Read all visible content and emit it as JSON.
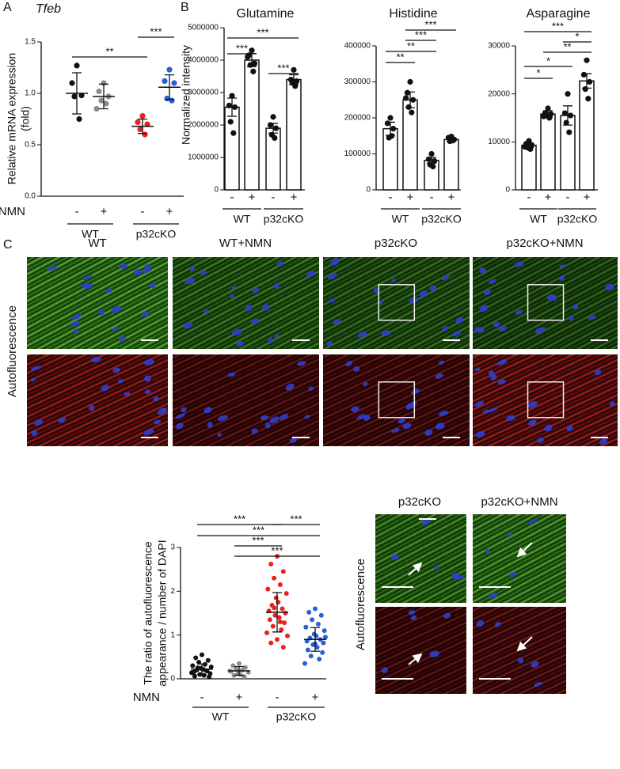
{
  "chart_data": [
    {
      "type": "dot",
      "panel_label": "A",
      "title": "Tfeb",
      "ylabel": [
        "Relative mRNA expression",
        "(fold)"
      ],
      "xlabel": "NMN",
      "categories": [
        "-",
        "+",
        "-",
        "+"
      ],
      "groups": [
        "WT",
        "p32cKO"
      ],
      "colors": [
        "#111111",
        "#8c8c8c",
        "#e8231f",
        "#2a5fd6"
      ],
      "points": [
        [
          1.27,
          1.1,
          0.98,
          0.97,
          0.75
        ],
        [
          1.1,
          1.02,
          0.97,
          0.93,
          0.9,
          0.85
        ],
        [
          0.78,
          0.72,
          0.7,
          0.65,
          0.6
        ],
        [
          1.23,
          1.12,
          1.1,
          0.95,
          0.93
        ]
      ],
      "means": [
        1.0,
        0.97,
        0.68,
        1.06
      ],
      "errors": [
        0.2,
        0.12,
        0.07,
        0.12
      ],
      "ylim": [
        0,
        1.5
      ],
      "yticks": [
        {
          "value": 0,
          "label": "0.0"
        },
        0.5,
        {
          "value": 1,
          "label": "1.0"
        },
        1.5
      ],
      "annotations": [
        "**",
        "***"
      ]
    },
    {
      "type": "bar",
      "panel_label": "B",
      "title": "Glutamine",
      "ylabel": [
        "Normalized intensity"
      ],
      "categories": [
        "-",
        "+",
        "-",
        "+"
      ],
      "groups": [
        "WT",
        "p32cKO"
      ],
      "color": "#111111",
      "points": [
        [
          2900000,
          2600000,
          2550000,
          2100000,
          1750000
        ],
        [
          4300000,
          4150000,
          3900000,
          3850000,
          3650000,
          4100000
        ],
        [
          2250000,
          2000000,
          1900000,
          1700000,
          1600000
        ],
        [
          3700000,
          3400000,
          3350000,
          3300000,
          3200000
        ]
      ],
      "means": [
        2550000,
        4000000,
        1900000,
        3400000
      ],
      "errors": [
        280000,
        200000,
        150000,
        150000
      ],
      "ylim": [
        0,
        5000000
      ],
      "yticks": [
        0,
        1000000,
        2000000,
        3000000,
        4000000,
        5000000
      ],
      "annotations": [
        "***",
        "***",
        "***"
      ]
    },
    {
      "type": "bar",
      "title": "Histidine",
      "categories": [
        "-",
        "+",
        "-",
        "+"
      ],
      "groups": [
        "WT",
        "p32cKO"
      ],
      "color": "#111111",
      "points": [
        [
          200000,
          185000,
          170000,
          145000,
          150000
        ],
        [
          300000,
          270000,
          250000,
          230000,
          215000,
          255000
        ],
        [
          100000,
          85000,
          80000,
          70000,
          65000
        ],
        [
          148000,
          145000,
          140000,
          135000,
          137000
        ]
      ],
      "means": [
        170000,
        250000,
        82000,
        140000
      ],
      "errors": [
        18000,
        22000,
        8000,
        5000
      ],
      "ylim": [
        0,
        400000
      ],
      "yticks": [
        0,
        100000,
        200000,
        300000,
        400000
      ],
      "annotations": [
        "***",
        "***",
        "**",
        "**"
      ]
    },
    {
      "type": "bar",
      "title": "Asparagine",
      "categories": [
        "-",
        "+",
        "-",
        "+"
      ],
      "groups": [
        "WT",
        "p32cKO"
      ],
      "color": "#111111",
      "points": [
        [
          10200,
          9600,
          9300,
          8800,
          8500,
          9000
        ],
        [
          17000,
          16000,
          15800,
          15500,
          15000,
          15300
        ],
        [
          20000,
          16000,
          15500,
          14000,
          12000
        ],
        [
          27000,
          24000,
          22500,
          21000,
          19000
        ]
      ],
      "means": [
        9300,
        15800,
        15500,
        22700
      ],
      "errors": [
        500,
        700,
        2000,
        1500
      ],
      "ylim": [
        0,
        30000
      ],
      "yticks": [
        0,
        10000,
        20000,
        30000
      ],
      "annotations": [
        "***",
        "*",
        "**",
        "*",
        "*"
      ]
    },
    {
      "type": "dot",
      "ylabel": [
        "The ratio of autofluorescence",
        "appearance / number of DAPI"
      ],
      "xlabel": "NMN",
      "categories": [
        "-",
        "+",
        "-",
        "+"
      ],
      "groups": [
        "WT",
        "p32cKO"
      ],
      "colors": [
        "#111111",
        "#8c8c8c",
        "#e8231f",
        "#2a5fd6"
      ],
      "points": [
        [
          0.55,
          0.48,
          0.42,
          0.38,
          0.33,
          0.3,
          0.27,
          0.24,
          0.22,
          0.2,
          0.18,
          0.15,
          0.12,
          0.1,
          0.08,
          0.06,
          0.04,
          0.25,
          0.19,
          0.14
        ],
        [
          0.35,
          0.3,
          0.26,
          0.22,
          0.2,
          0.18,
          0.15,
          0.12,
          0.1,
          0.08,
          0.05,
          0.17
        ],
        [
          2.8,
          2.62,
          2.45,
          2.3,
          2.15,
          2.05,
          1.95,
          1.85,
          1.75,
          1.68,
          1.6,
          1.55,
          1.5,
          1.45,
          1.4,
          1.35,
          1.28,
          1.2,
          1.12,
          1.05,
          0.98,
          0.9,
          0.82,
          0.72,
          1.62,
          1.3
        ],
        [
          1.6,
          1.52,
          1.45,
          1.35,
          1.25,
          1.18,
          1.1,
          1.02,
          0.98,
          0.93,
          0.9,
          0.86,
          0.82,
          0.78,
          0.72,
          0.66,
          0.6,
          0.52,
          0.45,
          0.35,
          0.95,
          0.8
        ]
      ],
      "means": [
        0.22,
        0.18,
        1.52,
        0.9
      ],
      "errors": [
        0.12,
        0.1,
        0.45,
        0.27
      ],
      "ylim": [
        0,
        3
      ],
      "yticks": [
        0,
        1,
        2,
        3
      ],
      "annotations": [
        "***",
        "***",
        "***",
        "***",
        "***"
      ]
    }
  ],
  "figure_c": {
    "panel_label": "C",
    "columns": [
      "WT",
      "WT+NMN",
      "p32cKO",
      "p32cKO+NMN"
    ],
    "row_label": "Autofluorescence",
    "inset_columns": [
      "p32cKO",
      "p32cKO+NMN"
    ],
    "inset_row_label": "Autofluorescence"
  }
}
